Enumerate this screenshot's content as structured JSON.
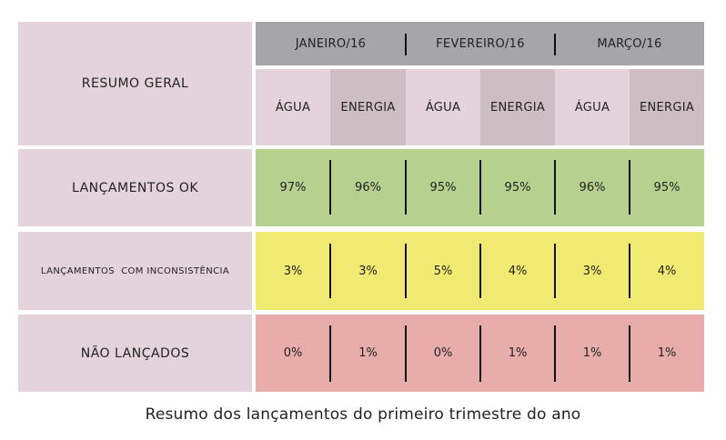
{
  "table": {
    "corner_label": "RESUMO GERAL",
    "months": [
      "JANEIRO/16",
      "FEVEREIRO/16",
      "MARÇO/16"
    ],
    "sub_headers": [
      "ÁGUA",
      "ENERGIA",
      "ÁGUA",
      "ENERGIA",
      "ÁGUA",
      "ENERGIA"
    ],
    "rows": [
      {
        "label": "LANÇAMENTOS OK",
        "values": [
          "97%",
          "96%",
          "95%",
          "95%",
          "96%",
          "95%"
        ],
        "color": "#b6d18f"
      },
      {
        "label": "LANÇAMENTOS  COM INCONSISTÊNCIA",
        "values": [
          "3%",
          "3%",
          "5%",
          "4%",
          "3%",
          "4%"
        ],
        "color": "#f0ea72"
      },
      {
        "label": "NÃO LANÇADOS",
        "values": [
          "0%",
          "1%",
          "0%",
          "1%",
          "1%",
          "1%"
        ],
        "color": "#e8acab"
      }
    ]
  },
  "caption": "Resumo dos lançamentos do primeiro trimestre do ano"
}
